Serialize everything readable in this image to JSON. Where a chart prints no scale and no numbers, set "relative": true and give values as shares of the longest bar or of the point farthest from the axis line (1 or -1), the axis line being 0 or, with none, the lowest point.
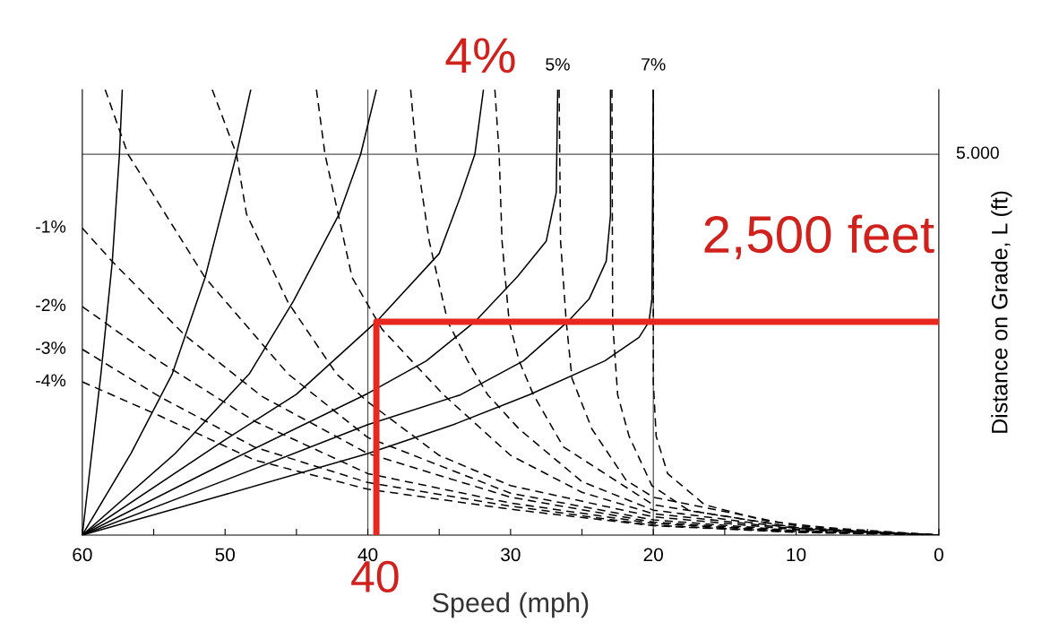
{
  "chart_data": {
    "type": "line",
    "relative": true,
    "xlabel": "Speed (mph)",
    "ylabel": "Distance on Grade, L (ft)",
    "xlim": [
      60,
      0
    ],
    "xticks": [
      60,
      {
        "value": 55,
        "label": null
      },
      50,
      {
        "value": 45,
        "label": null
      },
      40,
      {
        "value": 35,
        "label": null
      },
      30,
      {
        "value": 25,
        "label": null
      },
      20,
      {
        "value": 15,
        "label": null
      },
      10,
      {
        "value": 5,
        "label": null
      },
      0
    ],
    "grid": false,
    "legend": false,
    "series": [
      {
        "color": "#000000",
        "line_style": "solid",
        "x": [
          60,
          58.7,
          57.9,
          57.4,
          57.2
        ],
        "values": [
          0,
          0.361,
          0.614,
          0.855,
          1
        ]
      },
      {
        "color": "#000000",
        "line_style": "solid",
        "x": [
          60,
          56.6,
          53.7,
          51.4,
          49.2,
          48.2
        ],
        "values": [
          0,
          0.183,
          0.362,
          0.578,
          0.855,
          1
        ]
      },
      {
        "color": "#000000",
        "line_style": "solid",
        "x": [
          60,
          53.5,
          48.3,
          45.2,
          42.0,
          40.5,
          39.4
        ],
        "values": [
          0,
          0.183,
          0.362,
          0.526,
          0.721,
          0.855,
          1
        ]
      },
      {
        "color": "#000000",
        "line_style": "solid",
        "x": [
          60,
          50,
          45,
          39.4,
          35,
          33.5,
          32.5,
          31.9
        ],
        "values": [
          0,
          0.214,
          0.316,
          0.479,
          0.632,
          0.761,
          0.855,
          1
        ]
      },
      {
        "name": "5%",
        "color": "#000000",
        "line_style": "solid",
        "x": [
          60,
          50,
          40,
          35.9,
          32.5,
          29.5,
          27.5,
          26.8,
          26.7
        ],
        "values": [
          0,
          0.162,
          0.318,
          0.391,
          0.479,
          0.581,
          0.66,
          0.769,
          1
        ]
      },
      {
        "color": "#000000",
        "line_style": "solid",
        "x": [
          60,
          50,
          40,
          33.5,
          29.1,
          26.0,
          24.5,
          23.3,
          23.0,
          23.0
        ],
        "values": [
          0,
          0.123,
          0.248,
          0.315,
          0.391,
          0.479,
          0.53,
          0.615,
          0.718,
          1
        ]
      },
      {
        "name": "7%",
        "color": "#000000",
        "line_style": "solid",
        "x": [
          60,
          50,
          40,
          34,
          28.7,
          23.4,
          21.0,
          20.3,
          20.1,
          20.0
        ],
        "values": [
          0,
          0.091,
          0.183,
          0.248,
          0.315,
          0.391,
          0.444,
          0.479,
          0.53,
          1
        ]
      },
      {
        "color": "#000000",
        "line_style": "dashed",
        "x": [
          58.4,
          56.8,
          51.4,
          45.6,
          40,
          30,
          20,
          10,
          0
        ],
        "values": [
          1,
          0.855,
          0.578,
          0.362,
          0.219,
          0.094,
          0.034,
          0.01,
          0
        ]
      },
      {
        "color": "#000000",
        "line_style": "dashed",
        "x": [
          50.9,
          49.2,
          48.5,
          45.6,
          42.2,
          40,
          35,
          30,
          20,
          10,
          0
        ],
        "values": [
          1,
          0.855,
          0.721,
          0.523,
          0.362,
          0.299,
          0.179,
          0.111,
          0.041,
          0.012,
          0
        ]
      },
      {
        "color": "#000000",
        "line_style": "dashed",
        "x": [
          43.6,
          43.0,
          41.1,
          39.0,
          34.7,
          30,
          25,
          20,
          10,
          0
        ],
        "values": [
          1,
          0.855,
          0.578,
          0.462,
          0.315,
          0.179,
          0.096,
          0.048,
          0.014,
          0
        ]
      },
      {
        "color": "#000000",
        "line_style": "dashed",
        "x": [
          37.0,
          36.6,
          35.7,
          34.4,
          33.0,
          31.6,
          29.4,
          25,
          20,
          10,
          0
        ],
        "values": [
          1,
          0.855,
          0.66,
          0.479,
          0.391,
          0.315,
          0.238,
          0.12,
          0.056,
          0.015,
          0
        ]
      },
      {
        "color": "#000000",
        "line_style": "dashed",
        "x": [
          31.1,
          30.8,
          30.6,
          30.1,
          29.4,
          28.4,
          26.3,
          20,
          10,
          0
        ],
        "values": [
          1,
          0.855,
          0.66,
          0.479,
          0.391,
          0.315,
          0.198,
          0.068,
          0.017,
          0
        ]
      },
      {
        "color": "#000000",
        "line_style": "dashed",
        "x": [
          26.6,
          26.5,
          26.1,
          25.7,
          24.3,
          21.9,
          20,
          10,
          0
        ],
        "values": [
          1,
          0.66,
          0.479,
          0.352,
          0.238,
          0.123,
          0.085,
          0.021,
          0
        ]
      },
      {
        "color": "#000000",
        "line_style": "dashed",
        "x": [
          22.9,
          22.85,
          22.5,
          21.7,
          20.1,
          17.5,
          10,
          0
        ],
        "values": [
          1,
          0.479,
          0.315,
          0.222,
          0.111,
          0.055,
          0.017,
          0
        ]
      },
      {
        "color": "#000000",
        "line_style": "dashed",
        "x": [
          20.0,
          20.0,
          19.8,
          19.0,
          16.4,
          12,
          5,
          0
        ],
        "values": [
          1,
          0.342,
          0.222,
          0.138,
          0.068,
          0.031,
          0.007,
          0
        ]
      },
      {
        "name": "-1%",
        "color": "#000000",
        "line_style": "dashed",
        "x": [
          60,
          57.9,
          52.8,
          47.4,
          40,
          30,
          20,
          10,
          0
        ],
        "values": [
          0.689,
          0.614,
          0.448,
          0.311,
          0.183,
          0.085,
          0.029,
          0.009,
          0
        ]
      },
      {
        "name": "-2%",
        "color": "#000000",
        "line_style": "dashed",
        "x": [
          60,
          54.6,
          47.9,
          40,
          30,
          20,
          10,
          0
        ],
        "values": [
          0.513,
          0.39,
          0.255,
          0.138,
          0.072,
          0.026,
          0.008,
          0
        ]
      },
      {
        "name": "-3%",
        "color": "#000000",
        "line_style": "dashed",
        "x": [
          60,
          54.6,
          47.9,
          40,
          30,
          20,
          10,
          0
        ],
        "values": [
          0.417,
          0.311,
          0.197,
          0.118,
          0.065,
          0.022,
          0.007,
          0
        ]
      },
      {
        "name": "-4%",
        "color": "#000000",
        "line_style": "dashed",
        "x": [
          60,
          54.6,
          47.9,
          40,
          30,
          20,
          10,
          0
        ],
        "values": [
          0.344,
          0.268,
          0.168,
          0.103,
          0.058,
          0.021,
          0.006,
          0
        ]
      },
      {
        "color": "#e8281e",
        "line_style": "solid",
        "x": [
          39.4,
          39.4,
          0
        ],
        "values": [
          0,
          0.479,
          0.479
        ]
      }
    ],
    "ref_lines": [
      {
        "axis": "x",
        "value": 40,
        "color": "#555555"
      },
      {
        "axis": "x",
        "value": 20,
        "color": "#555555"
      },
      {
        "axis": "y",
        "value": 0.855,
        "color": "#555555"
      }
    ],
    "annotations": [
      "4%",
      "2,500 feet",
      "40",
      "5.000"
    ]
  }
}
